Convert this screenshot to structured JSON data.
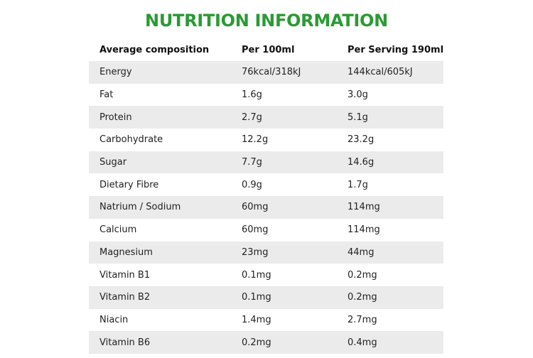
{
  "title": "NUTRITION INFORMATION",
  "colors": {
    "title": "#2a9a34",
    "shaded_row": "#ebebeb"
  },
  "table": {
    "headers": [
      "Average composition",
      "Per 100ml",
      "Per Serving 190ml"
    ],
    "rows": [
      [
        "Energy",
        "76kcal/318kJ",
        "144kcal/605kJ"
      ],
      [
        "Fat",
        "1.6g",
        "3.0g"
      ],
      [
        "Protein",
        "2.7g",
        "5.1g"
      ],
      [
        "Carbohydrate",
        "12.2g",
        "23.2g"
      ],
      [
        "Sugar",
        "7.7g",
        "14.6g"
      ],
      [
        "Dietary Fibre",
        "0.9g",
        "1.7g"
      ],
      [
        "Natrium / Sodium",
        "60mg",
        "114mg"
      ],
      [
        "Calcium",
        "60mg",
        "114mg"
      ],
      [
        "Magnesium",
        "23mg",
        "44mg"
      ],
      [
        "Vitamin B1",
        "0.1mg",
        "0.2mg"
      ],
      [
        "Vitamin B2",
        "0.1mg",
        "0.2mg"
      ],
      [
        "Niacin",
        "1.4mg",
        "2.7mg"
      ],
      [
        "Vitamin B6",
        "0.2mg",
        "0.4mg"
      ]
    ]
  }
}
